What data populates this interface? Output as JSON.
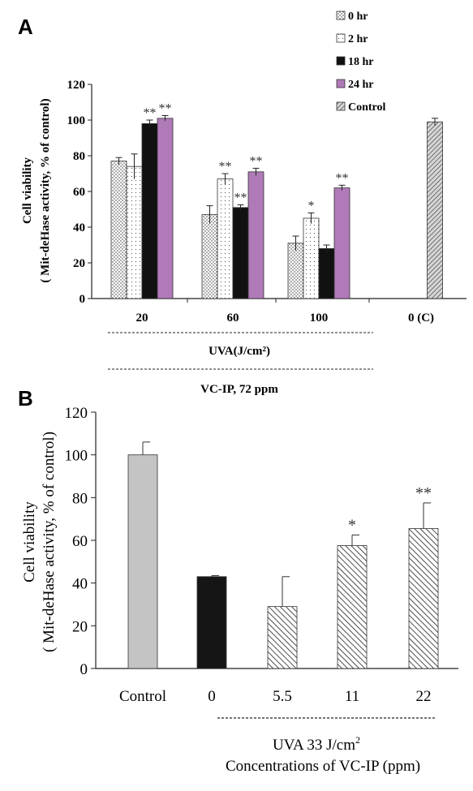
{
  "chart_data": [
    {
      "panel": "A",
      "type": "bar",
      "ylabel": "Cell viability",
      "ylabel2": "( Mit-deHase activity, % of control)",
      "ylim": [
        0,
        120
      ],
      "yticks": [
        "0",
        "20",
        "40",
        "60",
        "80",
        "100",
        "120"
      ],
      "categories": [
        "20",
        "60",
        "100",
        "0 (C)"
      ],
      "under_label_1": "UVA(J/cm²)",
      "under_label_2": "VC-IP, 72 ppm",
      "legend_placement": "top-right",
      "series": [
        {
          "name": "0 hr",
          "pattern": "dots",
          "color": "#ffffff",
          "values": [
            77,
            47,
            31,
            null
          ],
          "errors": [
            2,
            5,
            4,
            null
          ],
          "marks": [
            "",
            "",
            "",
            ""
          ]
        },
        {
          "name": "2 hr",
          "pattern": "dots-light",
          "color": "#ffffff",
          "values": [
            74,
            67,
            45,
            null
          ],
          "errors": [
            7,
            3,
            3,
            null
          ],
          "marks": [
            "",
            "**",
            "*",
            ""
          ]
        },
        {
          "name": "18 hr",
          "pattern": "solid",
          "color": "#111111",
          "values": [
            98,
            51,
            28,
            null
          ],
          "errors": [
            2,
            1.5,
            2,
            null
          ],
          "marks": [
            "**",
            "**",
            "",
            ""
          ]
        },
        {
          "name": "24 hr",
          "pattern": "solid",
          "color": "#b07ab8",
          "values": [
            101,
            71,
            62,
            null
          ],
          "errors": [
            1.5,
            2,
            1.5,
            null
          ],
          "marks": [
            "**",
            "**",
            "**",
            ""
          ]
        },
        {
          "name": "Control",
          "pattern": "hatch",
          "color": "#aaaaaa",
          "values": [
            null,
            null,
            null,
            99
          ],
          "errors": [
            null,
            null,
            null,
            2
          ],
          "marks": [
            "",
            "",
            "",
            ""
          ]
        }
      ]
    },
    {
      "panel": "B",
      "type": "bar",
      "ylabel": "Cell viability",
      "ylabel2": "( Mit-deHase activity, % of control)",
      "ylim": [
        0,
        120
      ],
      "yticks": [
        "0",
        "20",
        "40",
        "60",
        "80",
        "100",
        "120"
      ],
      "categories": [
        "Control",
        "0",
        "5.5",
        "11",
        "22"
      ],
      "values": [
        100,
        43,
        29,
        57.5,
        65.5
      ],
      "errors": [
        6,
        0.5,
        14,
        5,
        12
      ],
      "marks": [
        "",
        "",
        "",
        "*",
        "**"
      ],
      "fills": [
        "gray",
        "black",
        "hatch",
        "hatch",
        "hatch"
      ],
      "under_label_1": "UVA 33 J/cm",
      "under_label_1_sup": "2",
      "under_label_2": "Concentrations of VC-IP (ppm)"
    }
  ],
  "panel_letters": [
    "A",
    "B"
  ]
}
